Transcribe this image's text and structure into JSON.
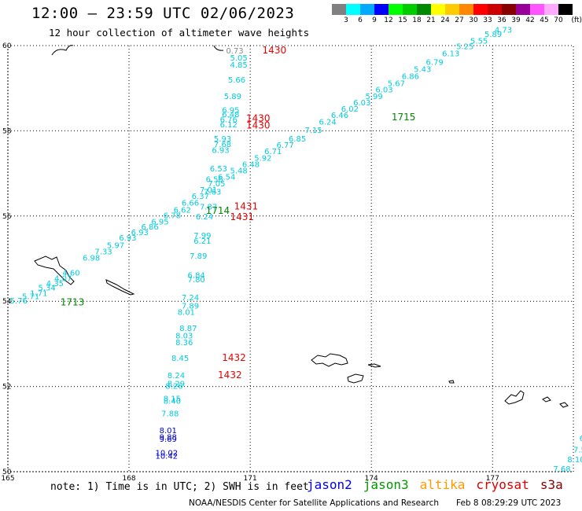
{
  "header": {
    "title": "12:00 — 23:59 UTC 02/06/2023",
    "subtitle": "12 hour collection of altimeter wave heights"
  },
  "legend": {
    "unit": "(ft)",
    "levels": [
      {
        "label": "3",
        "color": "#808080"
      },
      {
        "label": "6",
        "color": "#00ffff"
      },
      {
        "label": "9",
        "color": "#00aaff"
      },
      {
        "label": "12",
        "color": "#0000ff"
      },
      {
        "label": "15",
        "color": "#00ff00"
      },
      {
        "label": "18",
        "color": "#00cc00"
      },
      {
        "label": "21",
        "color": "#008800"
      },
      {
        "label": "24",
        "color": "#ffff00"
      },
      {
        "label": "27",
        "color": "#ffcc00"
      },
      {
        "label": "30",
        "color": "#ff8800"
      },
      {
        "label": "33",
        "color": "#ff0000"
      },
      {
        "label": "36",
        "color": "#cc0000"
      },
      {
        "label": "39",
        "color": "#880000"
      },
      {
        "label": "42",
        "color": "#990099"
      },
      {
        "label": "45",
        "color": "#ff55ff"
      },
      {
        "label": "70",
        "color": "#ffaaff"
      },
      {
        "label": "",
        "color": "#000000"
      }
    ]
  },
  "map": {
    "lon_range": [
      165,
      179
    ],
    "lat_range": [
      50,
      60
    ],
    "lon_ticks": [
      "165",
      "168",
      "171",
      "174",
      "177"
    ],
    "lat_ticks": [
      "50",
      "52",
      "54",
      "56",
      "58",
      "60"
    ],
    "colors": {
      "jason3_track": "#00ccdd",
      "jason2_track": "#0000cc",
      "cryosat_pass": "#ee0000",
      "jason3_pass": "#008800",
      "land": "#000000"
    },
    "track_a": [
      {
        "lon": 165.05,
        "lat": 53.95,
        "v": "5.76"
      },
      {
        "lon": 165.35,
        "lat": 54.05,
        "v": "5.71"
      },
      {
        "lon": 165.55,
        "lat": 54.12,
        "v": "1.71"
      },
      {
        "lon": 165.75,
        "lat": 54.25,
        "v": "5.34"
      },
      {
        "lon": 165.95,
        "lat": 54.35,
        "v": "4.35"
      },
      {
        "lon": 166.15,
        "lat": 54.47,
        "v": "4.07"
      },
      {
        "lon": 166.35,
        "lat": 54.6,
        "v": "4.60"
      },
      {
        "lon": 166.85,
        "lat": 54.95,
        "v": "6.98"
      },
      {
        "lon": 167.15,
        "lat": 55.1,
        "v": "7.33"
      },
      {
        "lon": 167.45,
        "lat": 55.25,
        "v": "5.97"
      },
      {
        "lon": 167.75,
        "lat": 55.42,
        "v": "6.93"
      },
      {
        "lon": 168.05,
        "lat": 55.55,
        "v": "6.93"
      },
      {
        "lon": 168.3,
        "lat": 55.68,
        "v": "6.86"
      },
      {
        "lon": 168.55,
        "lat": 55.8,
        "v": "6.95"
      },
      {
        "lon": 168.85,
        "lat": 55.95,
        "v": "6.78"
      },
      {
        "lon": 169.1,
        "lat": 56.08,
        "v": "6.62"
      },
      {
        "lon": 169.3,
        "lat": 56.25,
        "v": "6.66"
      },
      {
        "lon": 169.55,
        "lat": 56.4,
        "v": "6.37"
      },
      {
        "lon": 169.75,
        "lat": 56.55,
        "v": "7.01"
      },
      {
        "lon": 169.95,
        "lat": 56.7,
        "v": "7.05"
      },
      {
        "lon": 170.2,
        "lat": 56.85,
        "v": "6.54"
      },
      {
        "lon": 170.5,
        "lat": 57.0,
        "v": "5.48"
      },
      {
        "lon": 170.8,
        "lat": 57.15,
        "v": "6.48"
      },
      {
        "lon": 171.1,
        "lat": 57.3,
        "v": "5.92"
      },
      {
        "lon": 171.35,
        "lat": 57.45,
        "v": "6.71"
      },
      {
        "lon": 171.65,
        "lat": 57.6,
        "v": "6.77"
      },
      {
        "lon": 171.95,
        "lat": 57.75,
        "v": "6.85"
      },
      {
        "lon": 172.35,
        "lat": 57.95,
        "v": "7.15"
      },
      {
        "lon": 172.7,
        "lat": 58.15,
        "v": "6.24"
      },
      {
        "lon": 173.0,
        "lat": 58.3,
        "v": "6.46"
      },
      {
        "lon": 173.25,
        "lat": 58.45,
        "v": "6.02"
      },
      {
        "lon": 173.55,
        "lat": 58.6,
        "v": "6.03"
      },
      {
        "lon": 173.85,
        "lat": 58.75,
        "v": "5.99"
      },
      {
        "lon": 174.1,
        "lat": 58.9,
        "v": "6.03"
      },
      {
        "lon": 174.4,
        "lat": 59.05,
        "v": "5.67"
      },
      {
        "lon": 174.75,
        "lat": 59.22,
        "v": "6.86"
      },
      {
        "lon": 175.05,
        "lat": 59.38,
        "v": "5.43"
      },
      {
        "lon": 175.35,
        "lat": 59.55,
        "v": "6.79"
      },
      {
        "lon": 175.75,
        "lat": 59.75,
        "v": "6.13"
      },
      {
        "lon": 176.1,
        "lat": 59.92,
        "v": "5.25"
      },
      {
        "lon": 176.45,
        "lat": 60.05,
        "v": "5.55"
      },
      {
        "lon": 176.8,
        "lat": 60.2,
        "v": "5.89"
      },
      {
        "lon": 177.05,
        "lat": 60.3,
        "v": "4.73"
      }
    ],
    "track_b": [
      {
        "lon": 170.5,
        "lat": 59.65,
        "v": "5.05"
      },
      {
        "lon": 170.5,
        "lat": 59.48,
        "v": "4.85"
      },
      {
        "lon": 170.45,
        "lat": 59.13,
        "v": "5.66"
      },
      {
        "lon": 170.35,
        "lat": 58.75,
        "v": "5.89"
      },
      {
        "lon": 170.3,
        "lat": 58.42,
        "v": "6.95"
      },
      {
        "lon": 170.3,
        "lat": 58.32,
        "v": "6.48"
      },
      {
        "lon": 170.25,
        "lat": 58.2,
        "v": "6.76"
      },
      {
        "lon": 170.25,
        "lat": 58.08,
        "v": "6.12"
      },
      {
        "lon": 170.1,
        "lat": 57.75,
        "v": "5.93"
      },
      {
        "lon": 170.1,
        "lat": 57.62,
        "v": "7.68"
      },
      {
        "lon": 170.05,
        "lat": 57.48,
        "v": "6.93"
      },
      {
        "lon": 170.0,
        "lat": 57.05,
        "v": "6.53"
      },
      {
        "lon": 169.9,
        "lat": 56.8,
        "v": "6.56"
      },
      {
        "lon": 169.85,
        "lat": 56.5,
        "v": "7.63"
      },
      {
        "lon": 169.75,
        "lat": 56.15,
        "v": "7.87"
      },
      {
        "lon": 169.65,
        "lat": 55.92,
        "v": "6.24"
      },
      {
        "lon": 169.6,
        "lat": 55.48,
        "v": "7.99"
      },
      {
        "lon": 169.6,
        "lat": 55.35,
        "v": "6.21"
      },
      {
        "lon": 169.5,
        "lat": 55.0,
        "v": "7.89"
      },
      {
        "lon": 169.45,
        "lat": 54.55,
        "v": "6.84"
      },
      {
        "lon": 169.45,
        "lat": 54.45,
        "v": "7.80"
      },
      {
        "lon": 169.3,
        "lat": 54.02,
        "v": "7.24"
      },
      {
        "lon": 169.3,
        "lat": 53.83,
        "v": "7.89"
      },
      {
        "lon": 169.2,
        "lat": 53.68,
        "v": "8.01"
      },
      {
        "lon": 169.25,
        "lat": 53.3,
        "v": "8.87"
      },
      {
        "lon": 169.15,
        "lat": 53.13,
        "v": "8.03"
      },
      {
        "lon": 169.15,
        "lat": 52.97,
        "v": "8.36"
      },
      {
        "lon": 169.05,
        "lat": 52.6,
        "v": "8.45"
      },
      {
        "lon": 168.95,
        "lat": 52.2,
        "v": "8.24"
      },
      {
        "lon": 168.95,
        "lat": 52.0,
        "v": "8.29"
      },
      {
        "lon": 168.9,
        "lat": 51.95,
        "v": "8.26"
      },
      {
        "lon": 168.85,
        "lat": 51.65,
        "v": "8.15"
      },
      {
        "lon": 168.85,
        "lat": 51.6,
        "v": "8.40"
      },
      {
        "lon": 168.8,
        "lat": 51.3,
        "v": "7.88"
      },
      {
        "lon": 168.75,
        "lat": 50.9,
        "v": "8.01"
      },
      {
        "lon": 168.75,
        "lat": 50.75,
        "v": "9.88"
      },
      {
        "lon": 168.75,
        "lat": 50.7,
        "v": "9.69"
      },
      {
        "lon": 168.65,
        "lat": 50.38,
        "v": "10.02"
      },
      {
        "lon": 168.65,
        "lat": 50.3,
        "v": "10.42"
      }
    ],
    "track_b_jason2_values": [
      "8.01",
      "9.88",
      "9.69",
      "10.02",
      "10.42"
    ],
    "track_c": [
      {
        "lon": 179.4,
        "lat": 51.6,
        "v": "9"
      },
      {
        "lon": 179.3,
        "lat": 51.3,
        "v": "8.6"
      },
      {
        "lon": 179.3,
        "lat": 51.0,
        "v": "8.20"
      },
      {
        "lon": 179.15,
        "lat": 50.72,
        "v": "6.60"
      },
      {
        "lon": 179.0,
        "lat": 50.45,
        "v": "7.55"
      },
      {
        "lon": 178.85,
        "lat": 50.22,
        "v": "8.10"
      },
      {
        "lon": 178.5,
        "lat": 50.0,
        "v": "7.68"
      }
    ],
    "pass_labels": [
      {
        "lon": 166.3,
        "lat": 53.9,
        "text": "1713",
        "kind": "jason3"
      },
      {
        "lon": 169.9,
        "lat": 56.05,
        "text": "1714",
        "kind": "jason3"
      },
      {
        "lon": 174.5,
        "lat": 58.25,
        "text": "1715",
        "kind": "jason3"
      },
      {
        "lon": 171.3,
        "lat": 59.82,
        "text": "1430",
        "kind": "cryosat"
      },
      {
        "lon": 170.9,
        "lat": 58.22,
        "text": "1430",
        "kind": "cryosat"
      },
      {
        "lon": 170.9,
        "lat": 58.05,
        "text": "1430",
        "kind": "cryosat"
      },
      {
        "lon": 170.6,
        "lat": 56.15,
        "text": "1431",
        "kind": "cryosat"
      },
      {
        "lon": 170.5,
        "lat": 55.9,
        "text": "1431",
        "kind": "cryosat"
      },
      {
        "lon": 170.3,
        "lat": 52.6,
        "text": "1432",
        "kind": "cryosat"
      },
      {
        "lon": 170.2,
        "lat": 52.2,
        "text": "1432",
        "kind": "cryosat"
      },
      {
        "lon": 179.4,
        "lat": 50.0,
        "text": "2",
        "kind": "cryosat-dark"
      }
    ],
    "gray_point": {
      "lon": 170.4,
      "lat": 59.82,
      "v": "0.73"
    }
  },
  "footer": {
    "note": "note: 1) Time is in UTC; 2) SWH is in feet",
    "missions": [
      {
        "name": "jason2",
        "color": "#0000ee"
      },
      {
        "name": "jason3",
        "color": "#009900"
      },
      {
        "name": "altika",
        "color": "#ff9900"
      },
      {
        "name": "cryosat",
        "color": "#dd0000"
      },
      {
        "name": "s3a",
        "color": "#880000"
      }
    ],
    "credit": "NOAA/NESDIS Center for Satellite Applications and Research",
    "timestamp": "Feb  8 08:29:29 UTC 2023"
  }
}
